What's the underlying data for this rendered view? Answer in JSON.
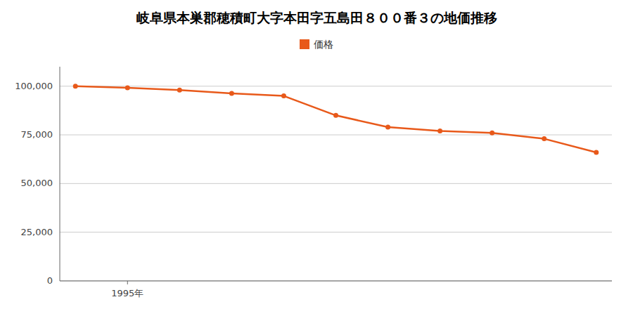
{
  "chart_data": {
    "type": "line",
    "title": "岐阜県本巣郡穂積町大字本田字五島田８００番３の地価推移",
    "x": [
      1994,
      1995,
      1996,
      1997,
      1998,
      1999,
      2000,
      2001,
      2002,
      2003,
      2004
    ],
    "series": [
      {
        "name": "価格",
        "color": "#e8591a",
        "values": [
          100000,
          99200,
          98000,
          96300,
          95000,
          85000,
          79000,
          77000,
          76000,
          73000,
          66000
        ]
      }
    ],
    "xlim": [
      1993.7,
      2004.3
    ],
    "xticks": [
      {
        "value": 1995,
        "label": "1995年"
      }
    ],
    "ylim": [
      0,
      110000
    ],
    "yticks": [
      0,
      {
        "value": 25000,
        "label": "25,000"
      },
      {
        "value": 50000,
        "label": "50,000"
      },
      {
        "value": 75000,
        "label": "75,000"
      },
      {
        "value": 100000,
        "label": "100,000"
      }
    ],
    "grid": true,
    "legend": "top",
    "marker": "circle"
  }
}
